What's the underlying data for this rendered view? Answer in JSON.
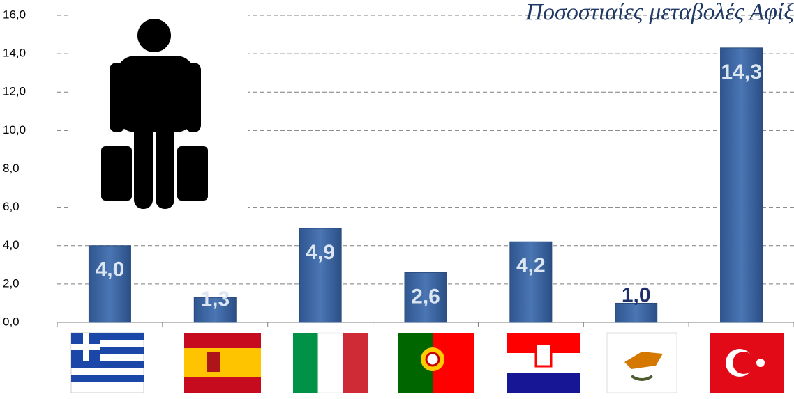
{
  "chart_data": {
    "type": "bar",
    "title": "Ποσοστιαίες μεταβολές Αφίξ",
    "categories": [
      null,
      null,
      null,
      null,
      null,
      null,
      null
    ],
    "values": [
      4.0,
      1.3,
      4.9,
      2.6,
      4.2,
      1.0,
      14.3
    ],
    "value_labels": [
      "4,0",
      "1,3",
      "4,9",
      "2,6",
      "4,2",
      "1,0",
      "14,3"
    ],
    "value_label_colors": [
      "#dce6f2",
      "#dce6f2",
      "#dce6f2",
      "#dce6f2",
      "#dce6f2",
      "#1f2f6b",
      "#dce6f2"
    ],
    "color": "#3a64a0",
    "ylim": [
      0,
      16
    ],
    "yticks": [
      {
        "value": 0,
        "label": "0,0"
      },
      {
        "value": 2,
        "label": "2,0"
      },
      {
        "value": 4,
        "label": "4,0"
      },
      {
        "value": 6,
        "label": "6,0"
      },
      {
        "value": 8,
        "label": "8,0"
      },
      {
        "value": 10,
        "label": "10,0"
      },
      {
        "value": 12,
        "label": "12,0"
      },
      {
        "value": 14,
        "label": "14,0"
      },
      {
        "value": 16,
        "label": "16,0"
      }
    ],
    "grid": true
  }
}
